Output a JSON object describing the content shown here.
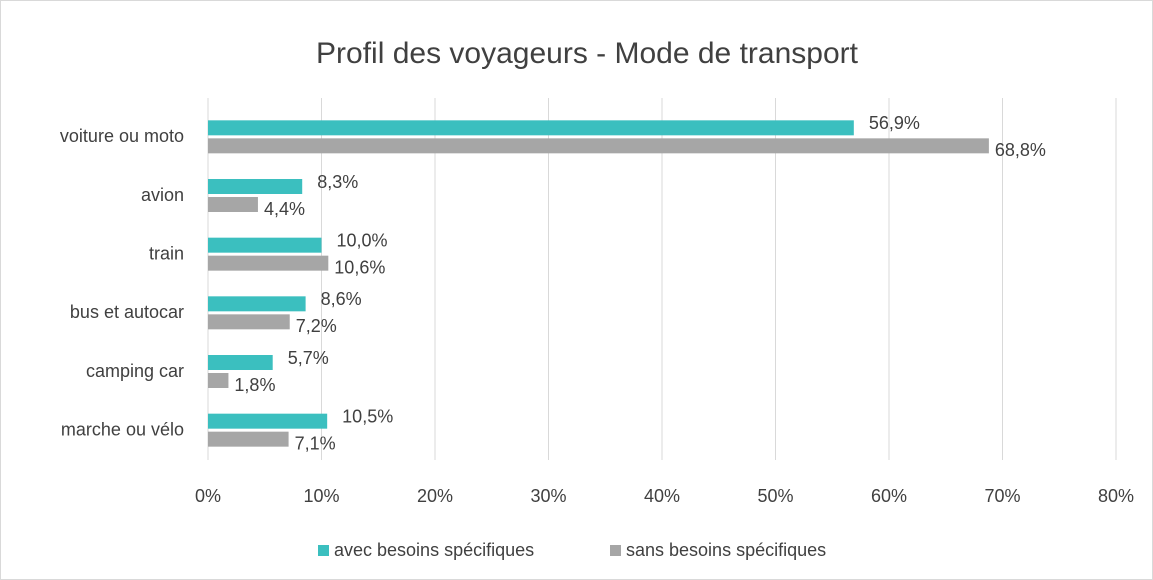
{
  "chart_data": {
    "type": "barh",
    "title": "Profil des voyageurs - Mode de transport",
    "categories": [
      "voiture ou moto",
      "avion",
      "train",
      "bus et autocar",
      "camping car",
      "marche ou vélo"
    ],
    "series": [
      {
        "name": "avec besoins spécifiques",
        "color": "#3bbfbf",
        "values": [
          56.9,
          8.3,
          10.0,
          8.6,
          5.7,
          10.5
        ],
        "value_labels": [
          "56,9%",
          "8,3%",
          "10,0%",
          "8,6%",
          "5,7%",
          "10,5%"
        ]
      },
      {
        "name": "sans besoins spécifiques",
        "color": "#a6a6a6",
        "values": [
          68.8,
          4.4,
          10.6,
          7.2,
          1.8,
          7.1
        ],
        "value_labels": [
          "68,8%",
          "4,4%",
          "10,6%",
          "7,2%",
          "1,8%",
          "7,1%"
        ]
      }
    ],
    "xlim": [
      0,
      80
    ],
    "xticks": [
      {
        "value": 0,
        "label": "0%"
      },
      {
        "value": 10,
        "label": "10%"
      },
      {
        "value": 20,
        "label": "20%"
      },
      {
        "value": 30,
        "label": "30%"
      },
      {
        "value": 40,
        "label": "40%"
      },
      {
        "value": 50,
        "label": "50%"
      },
      {
        "value": 60,
        "label": "60%"
      },
      {
        "value": 70,
        "label": "70%"
      },
      {
        "value": 80,
        "label": "80%"
      }
    ],
    "grid": true,
    "legend": "bottom"
  }
}
